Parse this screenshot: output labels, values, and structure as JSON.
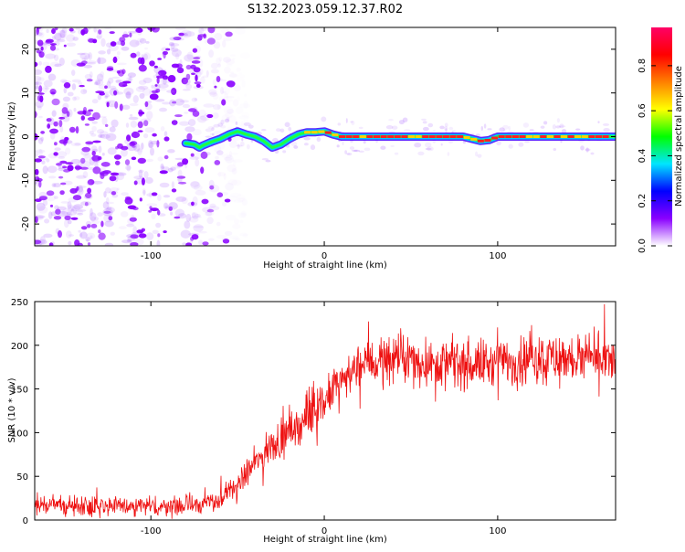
{
  "title": "S132.2023.059.12.37.R02",
  "chart_data": [
    {
      "type": "heatmap",
      "xlabel": "Height of straight line (km)",
      "ylabel": "Frequency (Hz)",
      "xlim": [
        -167,
        168
      ],
      "ylim": [
        -25,
        25
      ],
      "xticks": [
        -100,
        0,
        100
      ],
      "yticks": [
        -20,
        -10,
        0,
        10,
        20
      ],
      "colorbar": {
        "label": "Normalized spectral amplitude",
        "range": [
          0,
          0.97
        ],
        "ticks": [
          0.0,
          0.2,
          0.4,
          0.6,
          0.8
        ],
        "stops": [
          "#ffffff",
          "#8a00ff",
          "#0000ff",
          "#00e5ff",
          "#00ff00",
          "#ffff00",
          "#ff8000",
          "#ff0000",
          "#ff0066"
        ]
      },
      "noise_region": {
        "x": [
          -167,
          -60
        ],
        "color": "#8a00ff"
      },
      "ridge": {
        "x": [
          -80,
          -75,
          -72,
          -70,
          -65,
          -60,
          -55,
          -50,
          -45,
          -40,
          -35,
          -30,
          -25,
          -20,
          -15,
          -10,
          -5,
          0,
          5,
          10,
          20,
          40,
          60,
          80,
          85,
          90,
          95,
          100,
          120,
          140,
          168
        ],
        "y": [
          -1.5,
          -1.8,
          -2.5,
          -2.0,
          -1.2,
          -0.5,
          0.5,
          1.2,
          0.5,
          0.0,
          -1.0,
          -2.5,
          -1.8,
          -0.5,
          0.5,
          1.0,
          1.0,
          1.2,
          0.5,
          0.0,
          0.0,
          0.0,
          0.0,
          0.0,
          -0.5,
          -1.0,
          -0.8,
          0.0,
          0.0,
          0.0,
          0.0
        ]
      }
    },
    {
      "type": "line",
      "xlabel": "Height of straight line (km)",
      "ylabel": "SNR (10 * v/v)",
      "xlim": [
        -167,
        168
      ],
      "ylim": [
        0,
        250
      ],
      "xticks": [
        -100,
        0,
        100
      ],
      "yticks": [
        0,
        50,
        100,
        150,
        200,
        250
      ],
      "color": "#ee1111",
      "trend": {
        "x": [
          -167,
          -140,
          -110,
          -80,
          -60,
          -50,
          -40,
          -30,
          -20,
          -10,
          0,
          10,
          20,
          30,
          40,
          60,
          80,
          100,
          120,
          140,
          168
        ],
        "y": [
          18,
          17,
          16,
          16,
          22,
          40,
          65,
          85,
          100,
          115,
          135,
          160,
          175,
          182,
          185,
          180,
          178,
          180,
          185,
          185,
          180
        ]
      },
      "noise_amplitude": 14
    }
  ]
}
